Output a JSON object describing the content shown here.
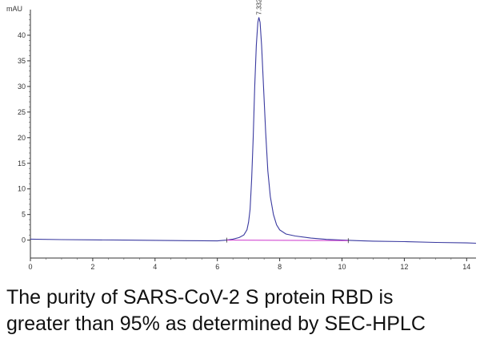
{
  "chart_data": {
    "type": "line",
    "ylabel": "mAU",
    "xlim": [
      0,
      14.3
    ],
    "ylim": [
      -3.5,
      45
    ],
    "x_ticks": [
      0,
      2,
      4,
      6,
      8,
      10,
      12,
      14
    ],
    "y_ticks": [
      0,
      5,
      10,
      15,
      20,
      25,
      30,
      35,
      40
    ],
    "peak": {
      "label": "7.332",
      "x": 7.332,
      "y": 43.5
    },
    "series": [
      {
        "color": "#3a3aa0",
        "points": [
          [
            0,
            0.2
          ],
          [
            1,
            0.1
          ],
          [
            2,
            0.05
          ],
          [
            3,
            0.0
          ],
          [
            4,
            -0.05
          ],
          [
            5,
            -0.1
          ],
          [
            6,
            -0.15
          ],
          [
            6.3,
            0.0
          ],
          [
            6.5,
            0.2
          ],
          [
            6.7,
            0.5
          ],
          [
            6.85,
            1.0
          ],
          [
            6.95,
            2.0
          ],
          [
            7.0,
            3.5
          ],
          [
            7.05,
            6.0
          ],
          [
            7.1,
            12.0
          ],
          [
            7.15,
            20.0
          ],
          [
            7.2,
            30.0
          ],
          [
            7.25,
            38.0
          ],
          [
            7.3,
            42.5
          ],
          [
            7.332,
            43.5
          ],
          [
            7.37,
            42.5
          ],
          [
            7.42,
            38.0
          ],
          [
            7.48,
            30.0
          ],
          [
            7.55,
            21.0
          ],
          [
            7.62,
            13.5
          ],
          [
            7.7,
            8.5
          ],
          [
            7.8,
            5.0
          ],
          [
            7.9,
            3.0
          ],
          [
            8.0,
            2.0
          ],
          [
            8.2,
            1.2
          ],
          [
            8.5,
            0.8
          ],
          [
            9.0,
            0.4
          ],
          [
            9.5,
            0.15
          ],
          [
            10.0,
            0.0
          ],
          [
            10.5,
            -0.1
          ],
          [
            11,
            -0.2
          ],
          [
            12,
            -0.3
          ],
          [
            13,
            -0.45
          ],
          [
            14,
            -0.55
          ],
          [
            14.3,
            -0.6
          ]
        ]
      },
      {
        "color": "#cc33cc",
        "points": [
          [
            6.3,
            0.0
          ],
          [
            10.2,
            -0.1
          ]
        ]
      }
    ]
  },
  "caption": {
    "line1": "The purity of SARS-CoV-2 S protein RBD is",
    "line2": "greater than 95% as determined by SEC-HPLC"
  }
}
